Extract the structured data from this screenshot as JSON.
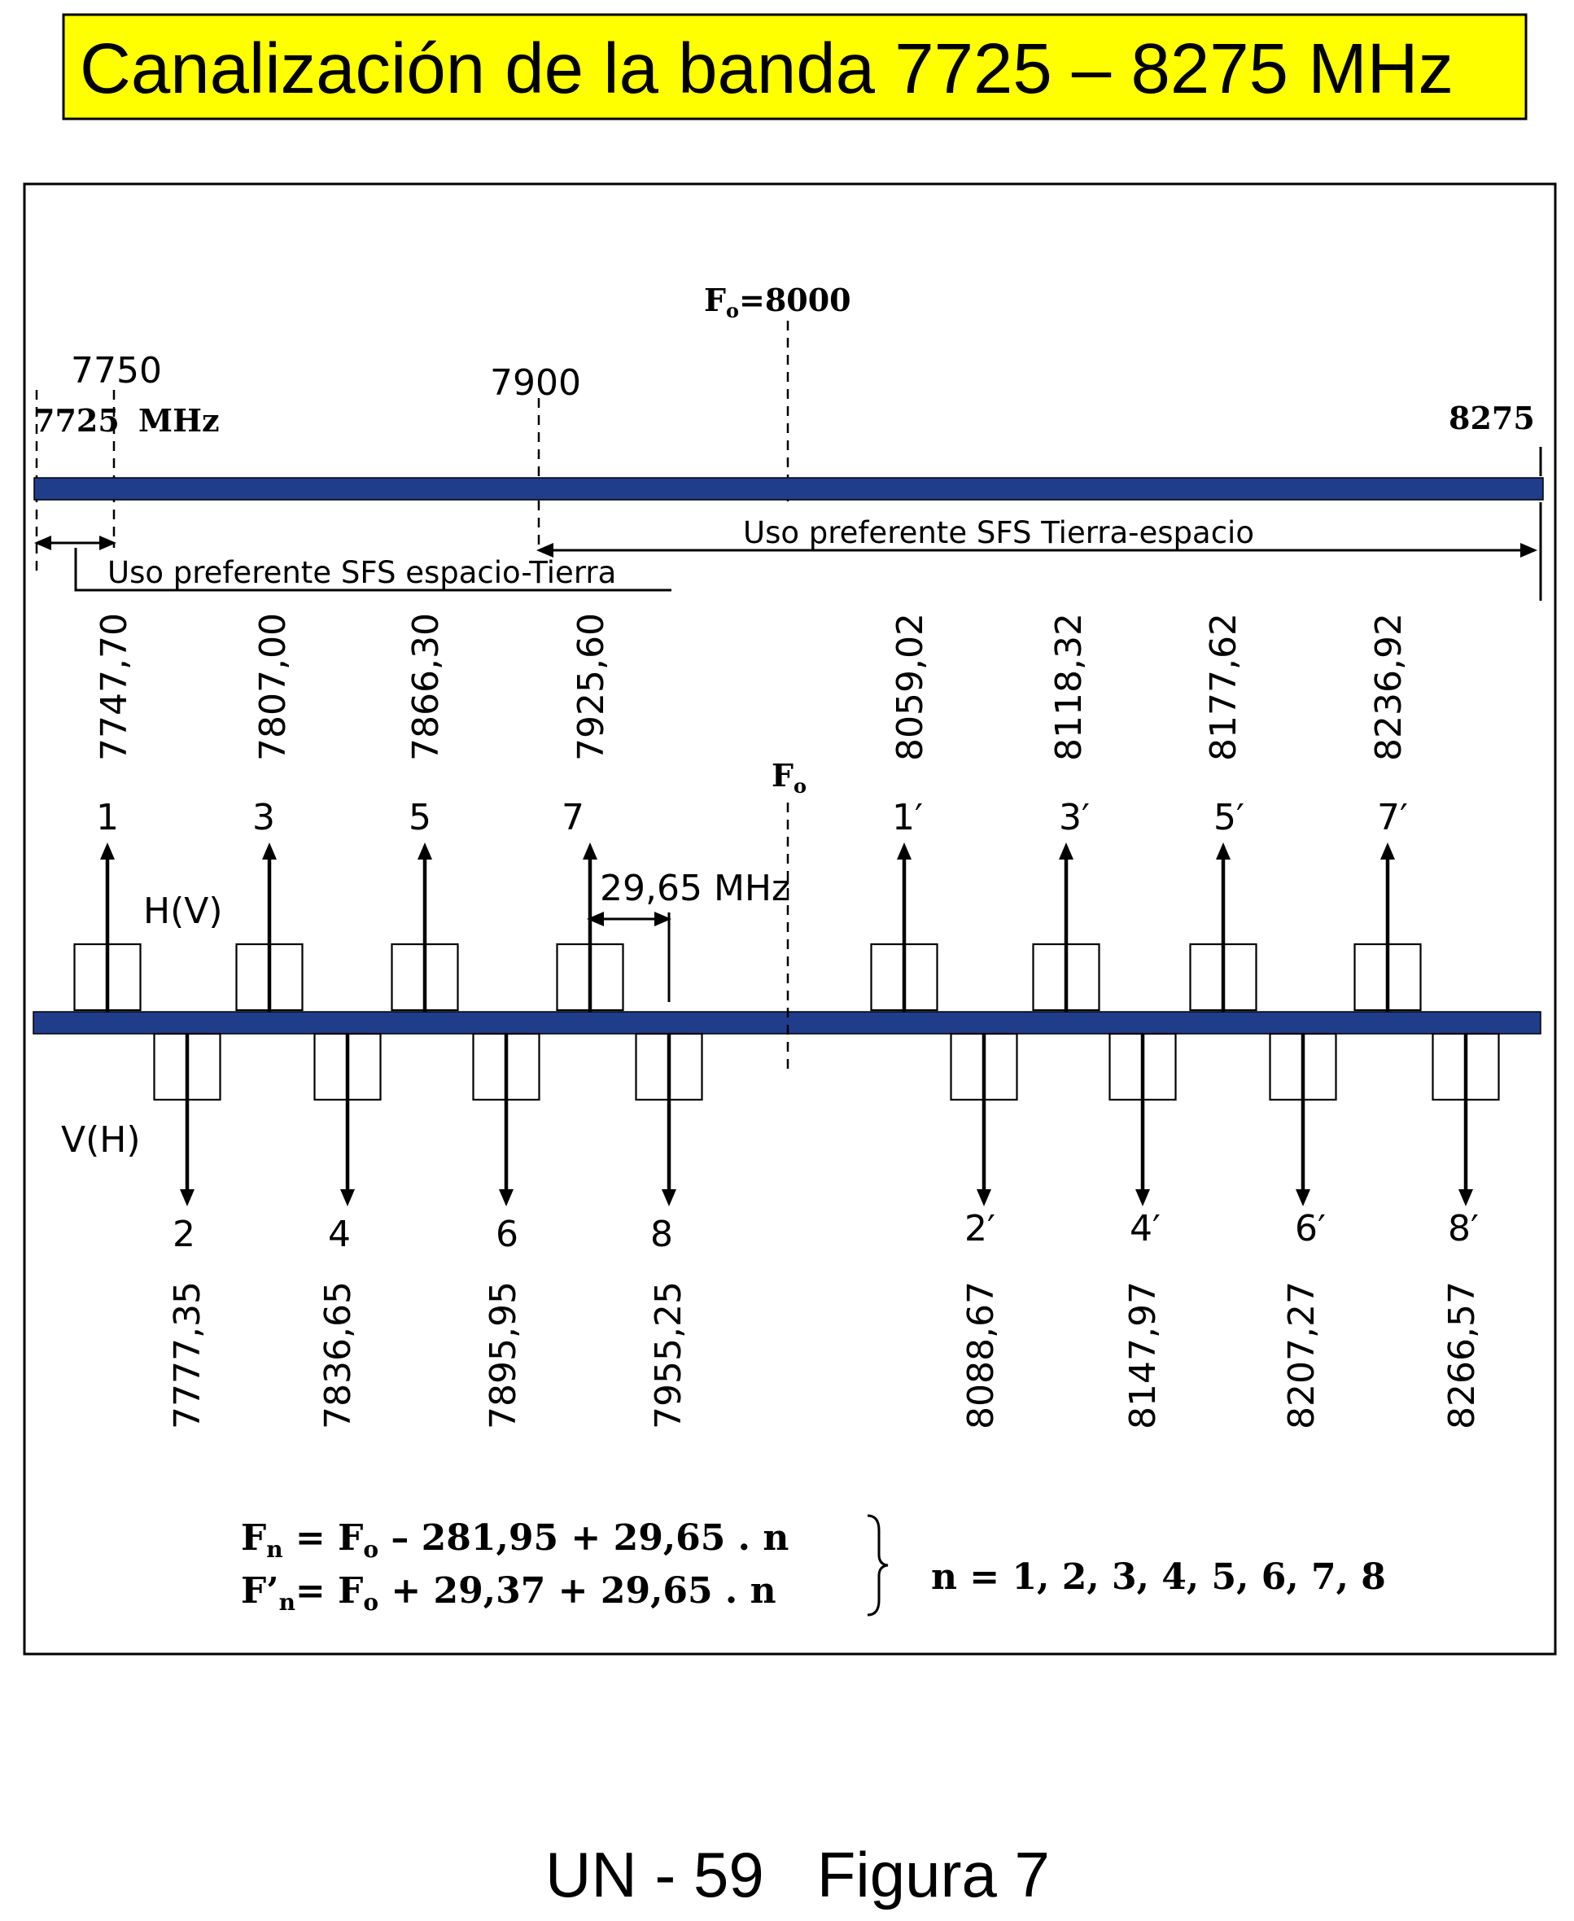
{
  "title": "Canalización de la banda 7725 – 8275 MHz",
  "band": {
    "fo_label": {
      "symbol": "F",
      "subscript": "o",
      "value": "=8000"
    },
    "mark_7750": "7750",
    "mark_7900": "7900",
    "start_label": "7725",
    "start_unit": "MHz",
    "end_label": "8275",
    "space_to_earth": "Uso preferente SFS espacio-Tierra",
    "earth_to_space": "Uso preferente SFS Tierra-espacio"
  },
  "center_frequency_label": {
    "symbol": "F",
    "subscript": "o"
  },
  "polarization_upper": "H(V)",
  "polarization_lower": "V(H)",
  "channel_spacing": "29,65 MHz",
  "channels_upper": [
    {
      "number": "1",
      "frequency": "7747,70"
    },
    {
      "number": "3",
      "frequency": "7807,00"
    },
    {
      "number": "5",
      "frequency": "7866,30"
    },
    {
      "number": "7",
      "frequency": "7925,60"
    },
    {
      "number": "1′",
      "frequency": "8059,02"
    },
    {
      "number": "3′",
      "frequency": "8118,32"
    },
    {
      "number": "5′",
      "frequency": "8177,62"
    },
    {
      "number": "7′",
      "frequency": "8236,92"
    }
  ],
  "channels_lower": [
    {
      "number": "2",
      "frequency": "7777,35"
    },
    {
      "number": "4",
      "frequency": "7836,65"
    },
    {
      "number": "6",
      "frequency": "7895,95"
    },
    {
      "number": "8",
      "frequency": "7955,25"
    },
    {
      "number": "2′",
      "frequency": "8088,67"
    },
    {
      "number": "4′",
      "frequency": "8147,97"
    },
    {
      "number": "6′",
      "frequency": "8207,27"
    },
    {
      "number": "8′",
      "frequency": "8266,57"
    }
  ],
  "formulas": {
    "fn": {
      "symbol": "F",
      "subscript": "n",
      "middle": " = F",
      "middle_subscript": "o",
      "rest": " – 281,95 + 29,65 . n"
    },
    "fpn": {
      "symbol": "F’",
      "subscript": "n",
      "middle": "= F",
      "middle_subscript": "o",
      "rest": " + 29,37 + 29,65 . n"
    },
    "n_range": "n = 1, 2, 3, 4, 5, 6, 7, 8"
  },
  "caption": "UN - 59   Figura 7",
  "colors": {
    "title_background": "#ffff00",
    "band_bar": "#1f3d8b",
    "channel_bar": "#1f3d8b"
  }
}
